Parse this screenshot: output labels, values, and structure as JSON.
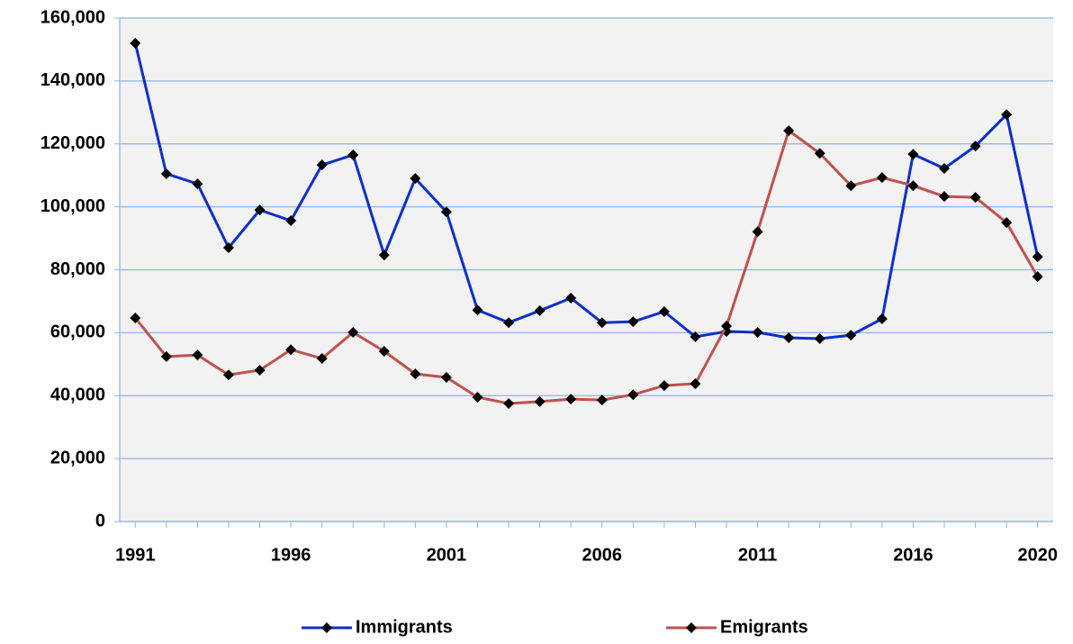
{
  "chart_data": {
    "type": "line",
    "x": [
      1991,
      1992,
      1993,
      1994,
      1995,
      1996,
      1997,
      1998,
      1999,
      2000,
      2001,
      2002,
      2003,
      2004,
      2005,
      2006,
      2007,
      2008,
      2009,
      2010,
      2011,
      2012,
      2013,
      2014,
      2015,
      2016,
      2017,
      2018,
      2019,
      2020
    ],
    "xlim": [
      1990.5,
      2020.5
    ],
    "xticks": [
      1991,
      1996,
      2001,
      2006,
      2011,
      2016,
      2020
    ],
    "ylim": [
      0,
      160000
    ],
    "yticks": [
      0,
      {
        "value": 20000,
        "label": "20,000"
      },
      {
        "value": 40000,
        "label": "40,000"
      },
      {
        "value": 60000,
        "label": "60,000"
      },
      {
        "value": 80000,
        "label": "80,000"
      },
      {
        "value": 100000,
        "label": "100,000"
      },
      {
        "value": 120000,
        "label": "120,000"
      },
      {
        "value": 140000,
        "label": "140,000"
      },
      {
        "value": 160000,
        "label": "160,000"
      }
    ],
    "grid": true,
    "legend": "bottom",
    "series": [
      {
        "name": "Immigrants",
        "color": "#0a2fcc",
        "values": [
          152000,
          110500,
          107300,
          87000,
          99000,
          95600,
          113300,
          116500,
          84700,
          109000,
          98400,
          67200,
          63200,
          67000,
          71000,
          63200,
          63500,
          66700,
          58700,
          60400,
          60100,
          58400,
          58100,
          59200,
          64400,
          116700,
          112200,
          119300,
          129300,
          84100
        ]
      },
      {
        "name": "Emigrants",
        "color": "#c0504d",
        "values": [
          64700,
          52400,
          52900,
          46600,
          48100,
          54600,
          51800,
          60100,
          54100,
          46900,
          45800,
          39500,
          37500,
          38100,
          38900,
          38600,
          40300,
          43200,
          43800,
          62100,
          92100,
          124200,
          117000,
          106700,
          109300,
          106700,
          103300,
          103000,
          95000,
          77800
        ]
      }
    ]
  }
}
